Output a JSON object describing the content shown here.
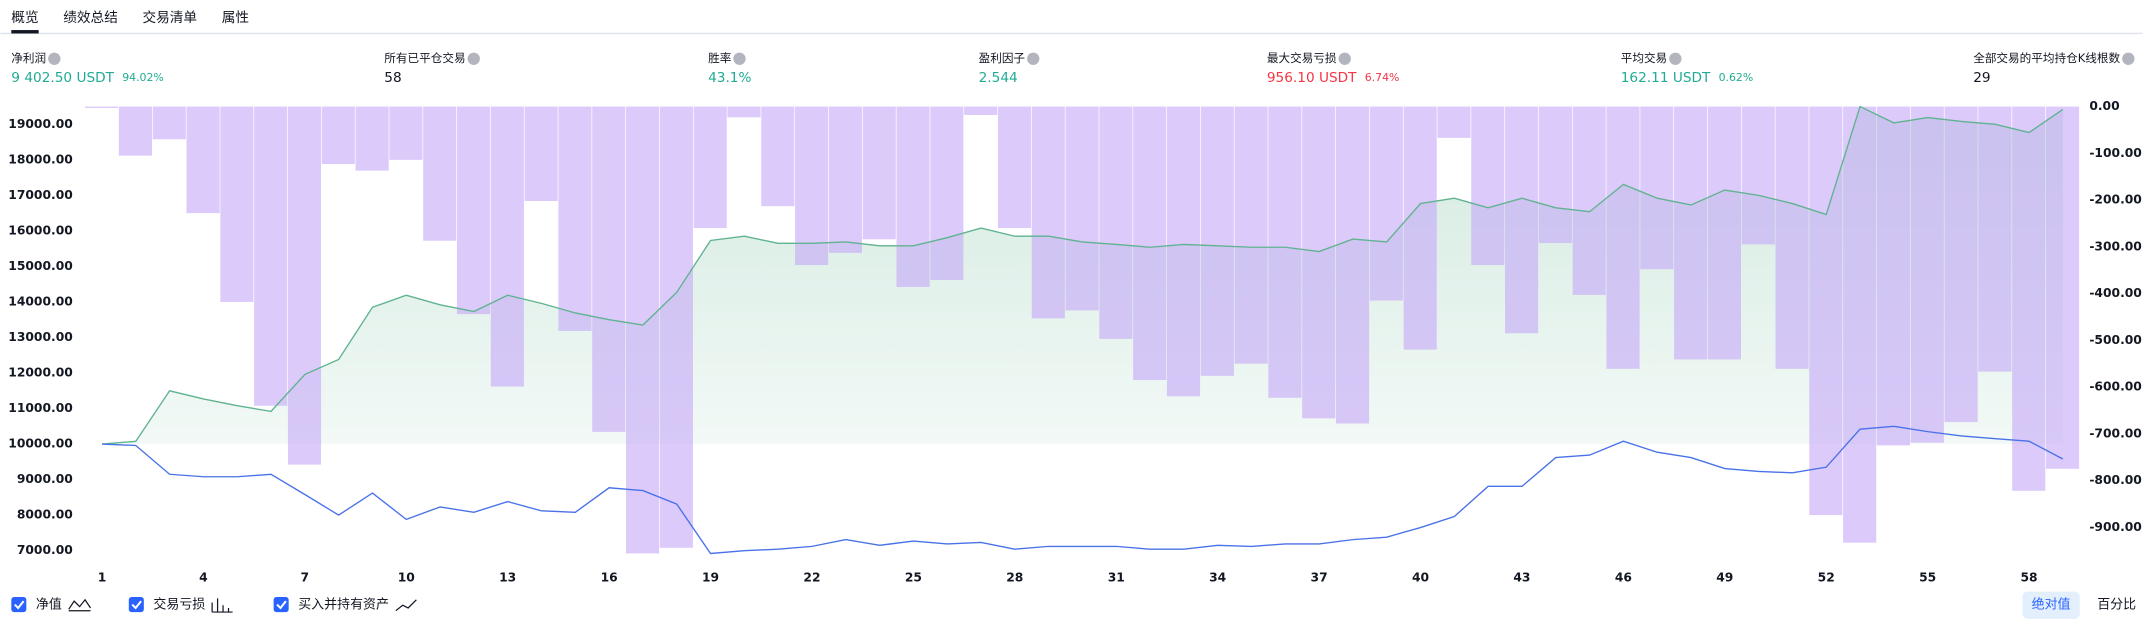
{
  "tabs": [
    "概览",
    "绩效总结",
    "交易清单",
    "属性"
  ],
  "stats": [
    {
      "label": "净利润",
      "value": "9 402.50 USDT",
      "percent": "94.02%",
      "color": "#22ab94"
    },
    {
      "label": "所有已平仓交易",
      "value": "58",
      "color": "#131722"
    },
    {
      "label": "胜率",
      "value": "43.1%",
      "color": "#22ab94"
    },
    {
      "label": "盈利因子",
      "value": "2.544",
      "color": "#22ab94"
    },
    {
      "label": "最大交易亏损",
      "value": "956.10 USDT",
      "percent": "6.74%",
      "color": "#f23645"
    },
    {
      "label": "平均交易",
      "value": "162.11 USDT",
      "percent": "0.62%",
      "color": "#22ab94"
    },
    {
      "label": "全部交易的平均持仓K线根数",
      "value": "29",
      "color": "#131722"
    }
  ],
  "chart_data": {
    "type": "combo",
    "categories": [
      "1",
      null,
      null,
      "4",
      null,
      null,
      "7",
      null,
      null,
      "10",
      null,
      null,
      "13",
      null,
      null,
      "16",
      null,
      null,
      "19",
      null,
      null,
      "22",
      null,
      null,
      "25",
      null,
      null,
      "28",
      null,
      null,
      "31",
      null,
      null,
      "34",
      null,
      null,
      "37",
      null,
      null,
      "40",
      null,
      null,
      "43",
      null,
      null,
      "46",
      null,
      null,
      "49",
      null,
      null,
      "52",
      null,
      null,
      "55",
      null,
      null,
      "58",
      null
    ],
    "ylim": [
      6540,
      19500
    ],
    "yticks": [
      {
        "value": 7000,
        "label": "7000.00"
      },
      {
        "value": 8000,
        "label": "8000.00"
      },
      {
        "value": 9000,
        "label": "9000.00"
      },
      {
        "value": 10000,
        "label": "10000.00"
      },
      {
        "value": 11000,
        "label": "11000.00"
      },
      {
        "value": 12000,
        "label": "12000.00"
      },
      {
        "value": 13000,
        "label": "13000.00"
      },
      {
        "value": 14000,
        "label": "14000.00"
      },
      {
        "value": 15000,
        "label": "15000.00"
      },
      {
        "value": 16000,
        "label": "16000.00"
      },
      {
        "value": 17000,
        "label": "17000.00"
      },
      {
        "value": 18000,
        "label": "18000.00"
      },
      {
        "value": 19000,
        "label": "19000.00"
      }
    ],
    "y2lim": [
      -985,
      0
    ],
    "y2ticks": [
      {
        "value": 0,
        "label": "0.00"
      },
      {
        "value": -100,
        "label": "-100.00"
      },
      {
        "value": -200,
        "label": "-200.00"
      },
      {
        "value": -300,
        "label": "-300.00"
      },
      {
        "value": -400,
        "label": "-400.00"
      },
      {
        "value": -500,
        "label": "-500.00"
      },
      {
        "value": -600,
        "label": "-600.00"
      },
      {
        "value": -700,
        "label": "-700.00"
      },
      {
        "value": -800,
        "label": "-800.00"
      },
      {
        "value": -900,
        "label": "-900.00"
      }
    ],
    "grid": false,
    "series": [
      {
        "name": "净值",
        "type": "area",
        "color": "#5fb38f",
        "values": [
          10000,
          10077,
          11500,
          11270,
          11080,
          10920,
          11960,
          12380,
          13850,
          14190,
          13920,
          13730,
          14190,
          13960,
          13690,
          13500,
          13350,
          14270,
          15730,
          15850,
          15650,
          15650,
          15690,
          15580,
          15580,
          15810,
          16080,
          15850,
          15850,
          15690,
          15620,
          15540,
          15620,
          15580,
          15540,
          15540,
          15420,
          15770,
          15690,
          16770,
          16920,
          16650,
          16920,
          16650,
          16540,
          17310,
          16920,
          16730,
          17150,
          17000,
          16770,
          16460,
          19500,
          19040,
          19190,
          19080,
          19000,
          18770,
          19420
        ]
      },
      {
        "name": "交易亏损",
        "type": "bar",
        "axis": "y2",
        "color": "#c5a6f8",
        "values": [
          -3,
          -105,
          -70,
          -228,
          -418,
          -640,
          -766,
          -123,
          -137,
          -114,
          -287,
          -444,
          -599,
          -202,
          -480,
          -696,
          -956,
          -944,
          -260,
          -23,
          -213,
          -339,
          -313,
          -284,
          -386,
          -371,
          -18,
          -260,
          -453,
          -436,
          -497,
          -585,
          -620,
          -576,
          -550,
          -623,
          -667,
          -678,
          -415,
          -520,
          -67,
          -339,
          -485,
          -292,
          -403,
          -561,
          -348,
          -541,
          -541,
          -295,
          -561,
          -874,
          -933,
          -725,
          -719,
          -675,
          -567,
          -822,
          -775
        ]
      },
      {
        "name": "买入并持有资产",
        "type": "line",
        "color": "#4a72e8",
        "values": [
          10000,
          9960,
          9150,
          9080,
          9080,
          9150,
          8580,
          8000,
          8620,
          7880,
          8230,
          8080,
          8380,
          8120,
          8080,
          8770,
          8690,
          8310,
          6920,
          7000,
          7040,
          7120,
          7310,
          7150,
          7270,
          7190,
          7230,
          7040,
          7120,
          7120,
          7120,
          7040,
          7040,
          7150,
          7120,
          7190,
          7190,
          7310,
          7380,
          7650,
          7960,
          8810,
          8810,
          9620,
          9690,
          10080,
          9770,
          9620,
          9310,
          9230,
          9190,
          9350,
          10420,
          10500,
          10350,
          10230,
          10150,
          10080,
          9580
        ]
      }
    ],
    "modes": [
      "绝对值",
      "百分比"
    ],
    "mode": "绝对值"
  }
}
